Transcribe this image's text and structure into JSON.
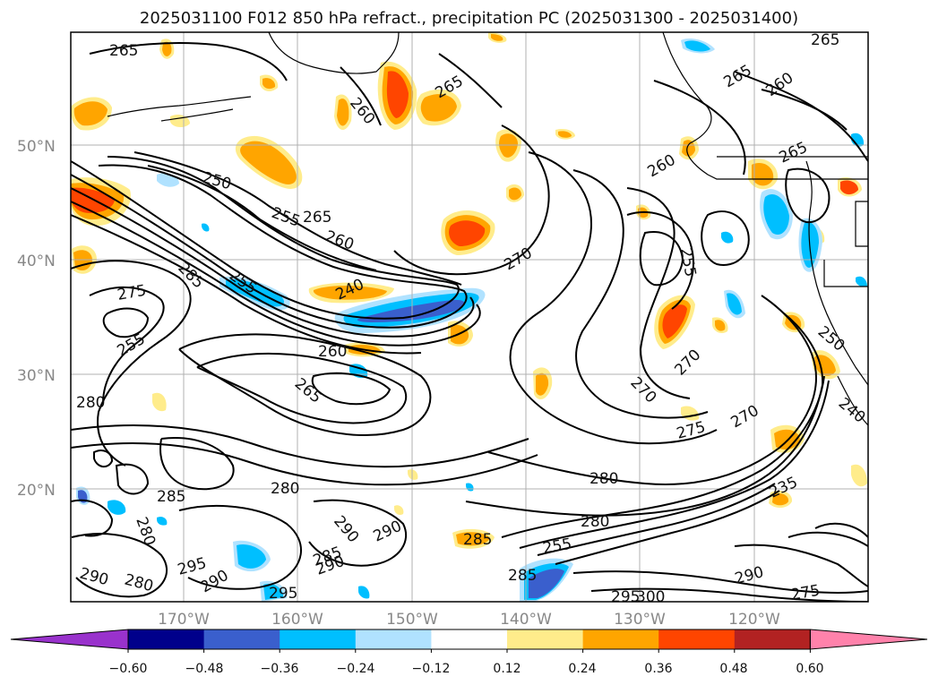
{
  "title": "2025031100 F012 850 hPa refract., precipitation PC (2025031300 - 2025031400)",
  "lat_labels": [
    "50°N",
    "40°N",
    "30°N",
    "20°N"
  ],
  "lon_labels": [
    "170°W",
    "160°W",
    "150°W",
    "140°W",
    "130°W",
    "120°W"
  ],
  "colorbar": {
    "colors": [
      "#9932CC",
      "#00008B",
      "#3A5FCD",
      "#00BFFF",
      "#B0E2FF",
      "#FFFFFF",
      "#FFEC8B",
      "#FFA500",
      "#FF4500",
      "#B22222",
      "#FF82AB"
    ],
    "tick_labels": [
      "−0.60",
      "−0.48",
      "−0.36",
      "−0.24",
      "−0.12",
      "0.12",
      "0.24",
      "0.36",
      "0.48",
      "0.60"
    ]
  },
  "contour_labels": [
    {
      "text": "265"
    },
    {
      "text": "260"
    },
    {
      "text": "265"
    },
    {
      "text": "265"
    },
    {
      "text": "260"
    },
    {
      "text": "265"
    },
    {
      "text": "265"
    },
    {
      "text": "250"
    },
    {
      "text": "255"
    },
    {
      "text": "265"
    },
    {
      "text": "260"
    },
    {
      "text": "260"
    },
    {
      "text": "270"
    },
    {
      "text": "275"
    },
    {
      "text": "240"
    },
    {
      "text": "255"
    },
    {
      "text": "260"
    },
    {
      "text": "255"
    },
    {
      "text": "265"
    },
    {
      "text": "270"
    },
    {
      "text": "270"
    },
    {
      "text": "275"
    },
    {
      "text": "270"
    },
    {
      "text": "280"
    },
    {
      "text": "280"
    },
    {
      "text": "285"
    },
    {
      "text": "280"
    },
    {
      "text": "290"
    },
    {
      "text": "290"
    },
    {
      "text": "285"
    },
    {
      "text": "290"
    },
    {
      "text": "295"
    },
    {
      "text": "290"
    },
    {
      "text": "295"
    },
    {
      "text": "280"
    },
    {
      "text": "285"
    },
    {
      "text": "255"
    },
    {
      "text": "280"
    },
    {
      "text": "285"
    },
    {
      "text": "295"
    },
    {
      "text": "300"
    },
    {
      "text": "290"
    },
    {
      "text": "275"
    },
    {
      "text": "235"
    },
    {
      "text": "250"
    },
    {
      "text": "240"
    },
    {
      "text": "255"
    },
    {
      "text": "285"
    },
    {
      "text": "290"
    },
    {
      "text": "280"
    }
  ]
}
